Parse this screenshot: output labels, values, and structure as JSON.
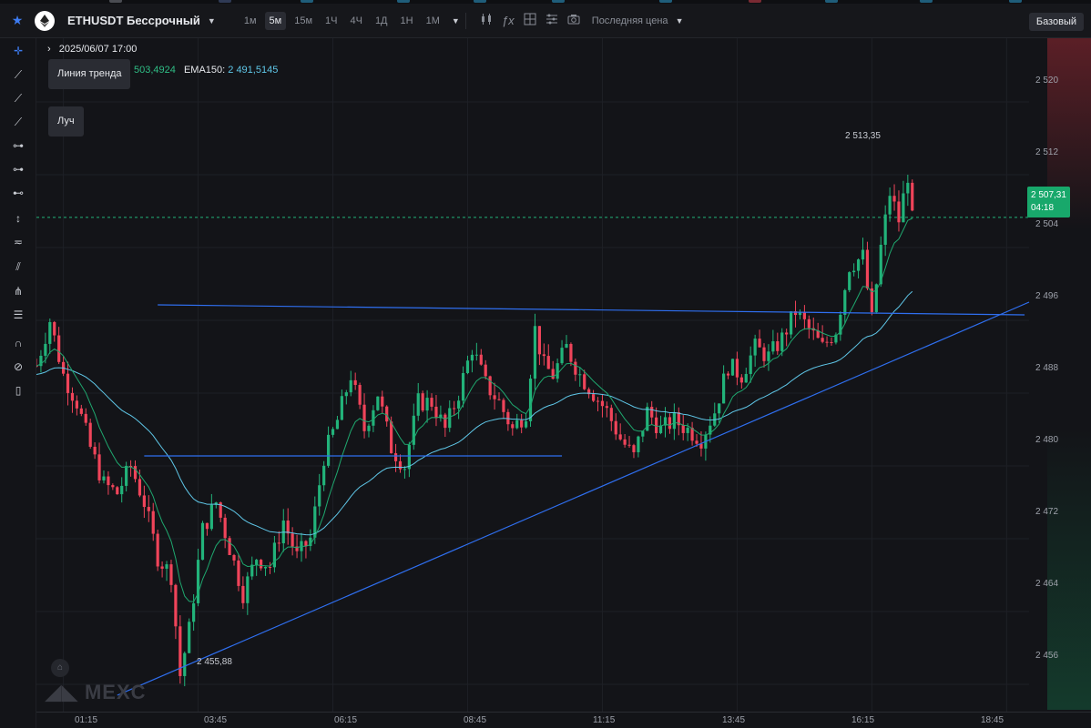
{
  "header": {
    "symbol": "ETHUSDT Бессрочный",
    "timeframes": [
      "1м",
      "5м",
      "15м",
      "1Ч",
      "4Ч",
      "1Д",
      "1Н",
      "1М"
    ],
    "active_timeframe": "5м",
    "price_type": "Последняя цена",
    "view_mode": "Базовый"
  },
  "legend": {
    "date": "2025/06/07 17:00",
    "ema_a_value": "503,4924",
    "ema_b_label": "EMA150:",
    "ema_b_value": "2 491,5145"
  },
  "tools": [
    {
      "name": "crosshair-tool",
      "icon": "crosshair-icon"
    },
    {
      "name": "trend-line-tool",
      "icon": "trend-line-icon"
    },
    {
      "name": "ray-tool",
      "icon": "ray-icon"
    },
    {
      "name": "extended-line-tool",
      "icon": "extended-line-icon"
    },
    {
      "name": "horizontal-line-tool",
      "icon": "horizontal-line-icon"
    },
    {
      "name": "horizontal-ray-tool",
      "icon": "horizontal-ray-icon"
    },
    {
      "name": "horizontal-segment-tool",
      "icon": "horizontal-segment-icon"
    },
    {
      "name": "vertical-line-tool",
      "icon": "vertical-line-icon"
    },
    {
      "name": "price-line-tool",
      "icon": "price-line-icon"
    },
    {
      "name": "parallel-channel-tool",
      "icon": "parallel-channel-icon"
    },
    {
      "name": "pitchfork-tool",
      "icon": "pitchfork-icon"
    },
    {
      "name": "fib-retracement-tool",
      "icon": "fib-icon"
    },
    {
      "name": "magnet-tool",
      "icon": "magnet-icon"
    },
    {
      "name": "hide-drawings-tool",
      "icon": "eye-off-icon"
    },
    {
      "name": "delete-drawings-tool",
      "icon": "trash-icon"
    }
  ],
  "tooltips": {
    "trend_line": "Линия тренда",
    "ray": "Луч"
  },
  "price_axis": {
    "ticks": [
      "2 520",
      "2 512",
      "2 504",
      "2 496",
      "2 488",
      "2 480",
      "2 472",
      "2 464",
      "2 456"
    ],
    "current_price": "2 507,31",
    "countdown": "04:18"
  },
  "time_axis": {
    "ticks": [
      "01:15",
      "03:45",
      "06:15",
      "08:45",
      "11:15",
      "13:45",
      "16:15",
      "18:45"
    ]
  },
  "markers": {
    "high": "2 513,35",
    "low": "2 455,88"
  },
  "watermark": "MEXC",
  "colors": {
    "up": "#22b37a",
    "down": "#f0445a",
    "ema_fast": "#1fa86f",
    "ema_slow": "#5fc7e8",
    "drawing": "#2f6ff0",
    "accent": "#3d7cf2",
    "price_tag": "#18a86b"
  },
  "chart_data": {
    "type": "candlestick",
    "y_range": [
      2453,
      2527
    ],
    "x_range": [
      "00:45",
      "19:10"
    ],
    "current_price": 2507.31,
    "high": {
      "time": "16:45",
      "price": 2513.35
    },
    "low": {
      "time": "03:25",
      "price": 2455.88
    },
    "trend_lines": [
      {
        "from": {
          "time": "03:00",
          "price": 2497.7
        },
        "to": {
          "time": "19:05",
          "price": 2496.6
        }
      },
      {
        "from": {
          "time": "02:45",
          "price": 2481.1
        },
        "to": {
          "time": "10:30",
          "price": 2481.1
        }
      },
      {
        "from": {
          "time": "02:15",
          "price": 2454.8
        },
        "to": {
          "time": "19:10",
          "price": 2498.0
        }
      }
    ]
  }
}
